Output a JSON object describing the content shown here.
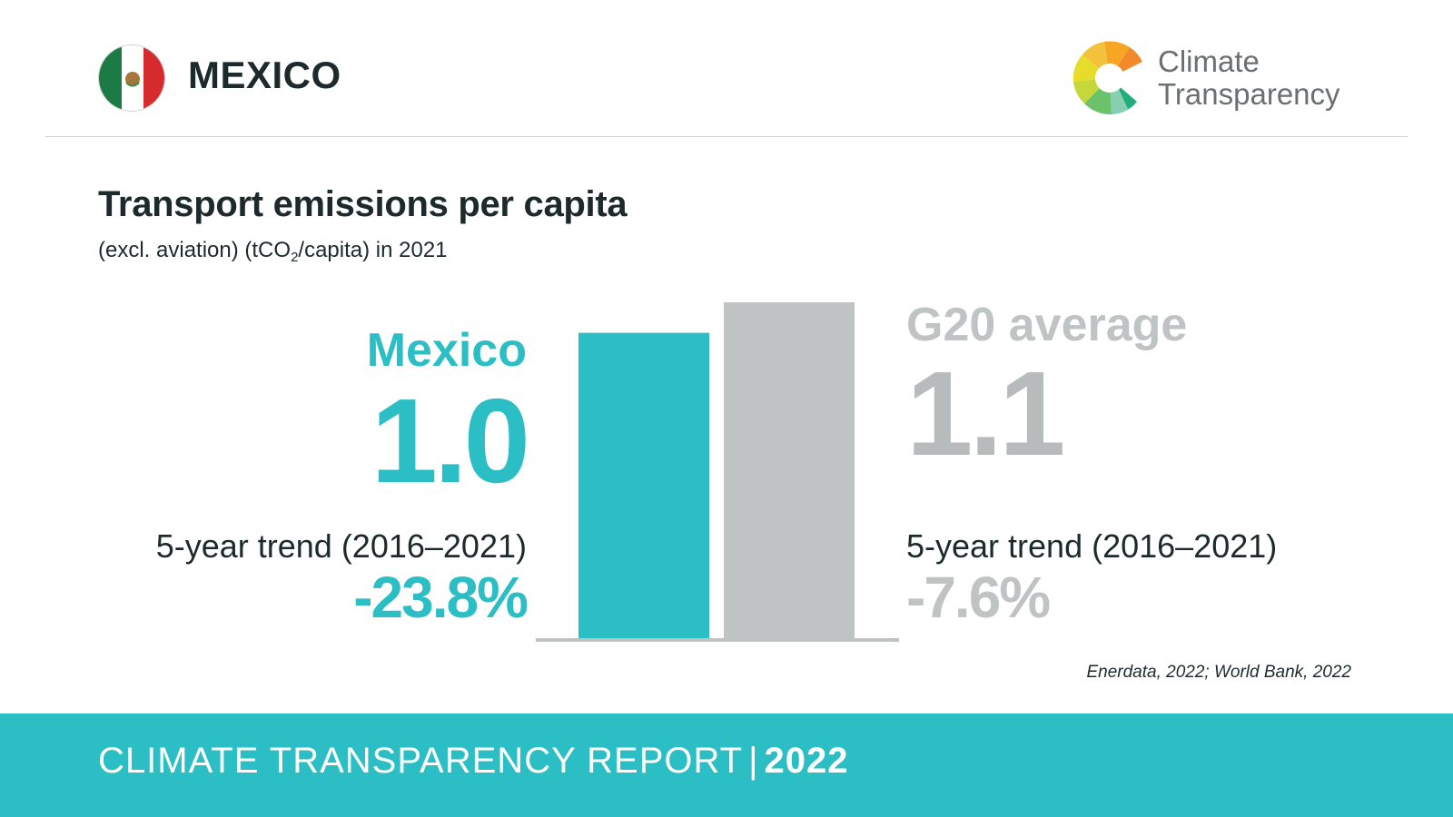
{
  "header": {
    "country": "MEXICO",
    "logo_line1": "Climate",
    "logo_line2": "Transparency"
  },
  "title": "Transport emissions per capita",
  "subtitle": {
    "pre": "(excl. aviation) (tCO",
    "sub": "2",
    "post": "/capita) in 2021"
  },
  "chart_data": {
    "type": "bar",
    "title": "Transport emissions per capita",
    "categories": [
      "Mexico",
      "G20 average"
    ],
    "values": [
      1.0,
      1.1
    ],
    "value_labels": [
      "1.0",
      "1.1"
    ],
    "trend_label": "5-year trend (2016–2021)",
    "trends": [
      "-23.8%",
      "-7.6%"
    ],
    "colors": [
      "#2bbec4",
      "#bfc3c4"
    ],
    "ylim": [
      0,
      1.1
    ],
    "grid": false
  },
  "source": "Enerdata, 2022; World Bank, 2022",
  "footer": {
    "report": "CLIMATE TRANSPARENCY REPORT",
    "separator": "|",
    "year": "2022"
  },
  "colors": {
    "accent": "#2bbec4",
    "g20": "#bfc3c4",
    "text": "#1d2a2c"
  }
}
